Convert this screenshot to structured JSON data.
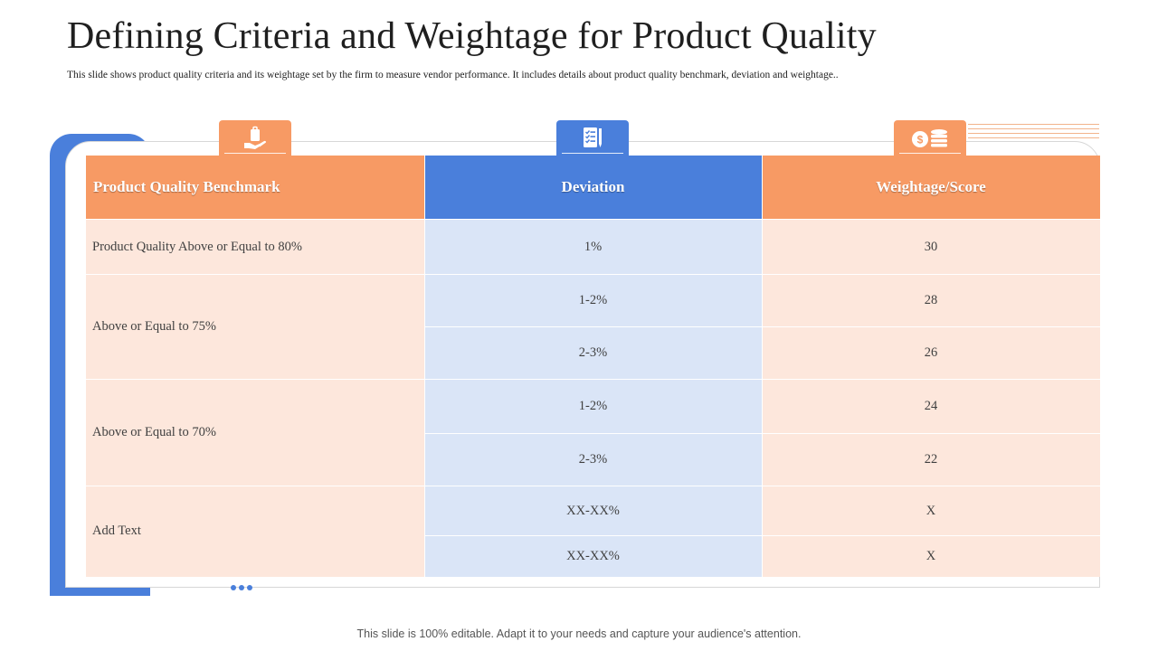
{
  "title": "Defining Criteria and Weightage for Product Quality",
  "subtitle": "This slide shows product quality criteria and its weightage set by the firm  to measure vendor performance. It includes details about product quality benchmark,  deviation and weightage..",
  "footer": "This slide is 100% editable. Adapt it to your needs and capture your audience's attention.",
  "icons": [
    "hand-bag-icon",
    "checklist-icon",
    "coins-icon"
  ],
  "colors": {
    "orange": "#f79a64",
    "blue": "#4a7fdb",
    "light_orange": "#fde7dc",
    "light_blue": "#dae5f7"
  },
  "table": {
    "headers": [
      "Product Quality Benchmark",
      "Deviation",
      "Weightage/Score"
    ],
    "groups": [
      {
        "benchmark": "Product Quality  Above or Equal  to 80%",
        "rows": [
          {
            "deviation": "1%",
            "score": "30"
          }
        ]
      },
      {
        "benchmark": "Above  or Equal  to 75%",
        "rows": [
          {
            "deviation": "1-2%",
            "score": "28"
          },
          {
            "deviation": "2-3%",
            "score": "26"
          }
        ]
      },
      {
        "benchmark": "Above  or Equal  to 70%",
        "rows": [
          {
            "deviation": "1-2%",
            "score": "24"
          },
          {
            "deviation": "2-3%",
            "score": "22"
          }
        ]
      },
      {
        "benchmark": "Add Text",
        "rows": [
          {
            "deviation": "XX-XX%",
            "score": "X"
          },
          {
            "deviation": "XX-XX%",
            "score": "X"
          }
        ]
      }
    ]
  }
}
